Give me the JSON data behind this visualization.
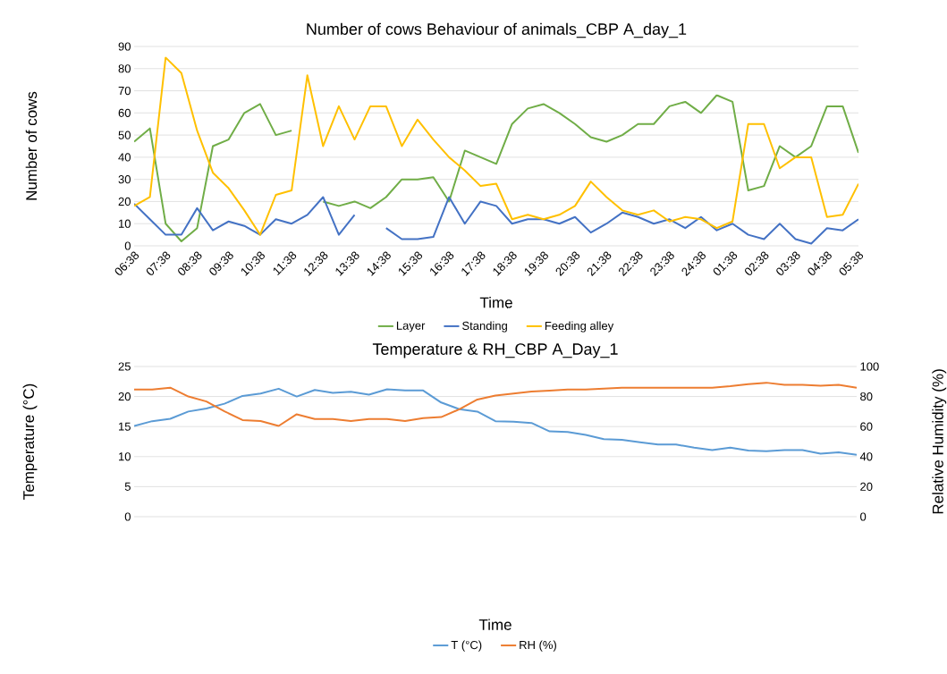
{
  "chart_data": [
    {
      "type": "line",
      "title": "Number of cows Behaviour of animals_CBP A_day_1",
      "xlabel": "Time",
      "ylabel": "Number of cows",
      "categories": [
        "06:38",
        null,
        "07:38",
        null,
        "08:38",
        null,
        "09:38",
        null,
        "10:38",
        null,
        "11:38",
        null,
        "12:38",
        null,
        "13:38",
        null,
        "14:38",
        null,
        "15:38",
        null,
        "16:38",
        null,
        "17:38",
        null,
        "18:38",
        null,
        "19:38",
        null,
        "20:38",
        null,
        "21:38",
        null,
        "22:38",
        null,
        "23:38",
        null,
        "24:38",
        null,
        "01:38",
        null,
        "02:38",
        null,
        "03:38",
        null,
        "04:38",
        null,
        "05:38"
      ],
      "ylim": [
        0,
        90
      ],
      "yticks": [
        0,
        10,
        20,
        30,
        40,
        50,
        60,
        70,
        80,
        90
      ],
      "grid": "y",
      "legend": "bottom",
      "series": [
        {
          "name": "Layer",
          "color": "#70ad47",
          "values": [
            47,
            53,
            10,
            2,
            8,
            45,
            48,
            60,
            64,
            50,
            52,
            null,
            20,
            18,
            20,
            17,
            22,
            30,
            30,
            31,
            20,
            43,
            40,
            37,
            55,
            62,
            64,
            60,
            55,
            49,
            47,
            50,
            55,
            55,
            63,
            65,
            60,
            68,
            65,
            25,
            27,
            45,
            40,
            45,
            63,
            63,
            42
          ]
        },
        {
          "name": "Standing",
          "color": "#4472c4",
          "values": [
            19,
            12,
            5,
            5,
            17,
            7,
            11,
            9,
            5,
            12,
            10,
            14,
            22,
            5,
            14,
            null,
            8,
            3,
            3,
            4,
            22,
            10,
            20,
            18,
            10,
            12,
            12,
            10,
            13,
            6,
            10,
            15,
            13,
            10,
            12,
            8,
            13,
            7,
            10,
            5,
            3,
            10,
            3,
            1,
            8,
            7,
            12
          ]
        },
        {
          "name": "Feeding alley",
          "color": "#ffc000",
          "values": [
            18,
            22,
            85,
            78,
            52,
            33,
            26,
            16,
            5,
            23,
            25,
            77,
            45,
            63,
            48,
            63,
            63,
            45,
            57,
            48,
            40,
            34,
            27,
            28,
            12,
            14,
            12,
            14,
            18,
            29,
            22,
            16,
            14,
            16,
            11,
            13,
            12,
            8,
            11,
            55,
            55,
            35,
            40,
            40,
            13,
            14,
            28
          ]
        }
      ]
    },
    {
      "type": "line",
      "title": "Temperature & RH_CBP A_Day_1",
      "xlabel": "Time",
      "ylabel": "Temperature (°C)",
      "y2label": "Relative Humidity (%)",
      "categories": [
        null,
        null,
        null,
        null,
        null,
        null,
        null,
        null,
        null,
        null,
        null,
        null,
        null,
        null,
        null,
        null,
        null,
        null,
        null,
        null,
        null,
        null,
        null,
        null,
        null,
        null,
        null,
        null,
        null,
        null,
        null,
        null,
        null,
        null,
        null,
        null,
        null,
        null,
        null,
        null,
        null
      ],
      "ylim": [
        0,
        25
      ],
      "yticks": [
        0,
        5,
        10,
        15,
        20,
        25
      ],
      "y2lim": [
        0,
        100
      ],
      "y2ticks": [
        0,
        20,
        40,
        60,
        80,
        100
      ],
      "grid": "y",
      "legend": "bottom",
      "series": [
        {
          "name": "T (°C)",
          "color": "#5b9bd5",
          "values": [
            15.1,
            15.9,
            16.3,
            17.5,
            18.0,
            18.8,
            20.1,
            20.5,
            21.3,
            20.0,
            21.1,
            20.6,
            20.8,
            20.3,
            21.2,
            21.0,
            21.0,
            19.0,
            17.9,
            17.5,
            15.9,
            15.8,
            15.6,
            14.2,
            14.1,
            13.6,
            12.9,
            12.8,
            12.4,
            12.0,
            12.0,
            11.5,
            11.1,
            11.5,
            11.0,
            10.9,
            11.1,
            11.1,
            10.5,
            10.7,
            10.3
          ]
        },
        {
          "name": "RH (%)",
          "color": "#ed7d31",
          "axis": "y2",
          "values": [
            84.6,
            84.6,
            85.9,
            80,
            76.7,
            70.2,
            64.3,
            63.7,
            60.4,
            68.2,
            65,
            65,
            63.7,
            65,
            65,
            63.7,
            65.6,
            66.3,
            71.5,
            78,
            80.7,
            82,
            83.3,
            83.9,
            84.6,
            84.6,
            85.2,
            85.9,
            85.9,
            85.9,
            85.9,
            85.9,
            85.9,
            86.9,
            88.2,
            89.2,
            87.8,
            87.8,
            87.2,
            87.8,
            85.9
          ]
        }
      ]
    }
  ]
}
